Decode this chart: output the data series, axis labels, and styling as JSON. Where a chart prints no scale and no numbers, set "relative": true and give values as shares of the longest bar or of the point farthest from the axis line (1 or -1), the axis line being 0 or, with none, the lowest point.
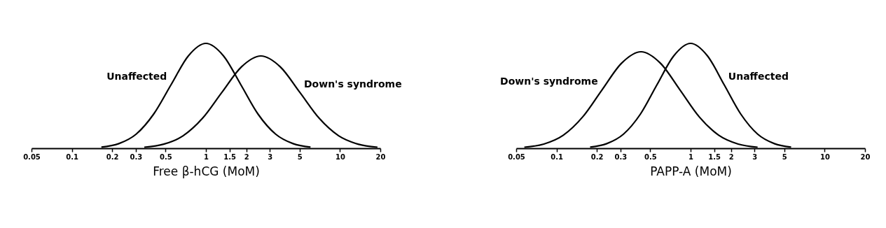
{
  "chart_data": [
    {
      "type": "line",
      "relative": true,
      "xlabel": "Free β-hCG (MoM)",
      "log": "x",
      "xlim": [
        0.05,
        20
      ],
      "xticks": [
        0.05,
        0.1,
        0.2,
        0.3,
        0.5,
        1,
        1.5,
        2,
        3,
        5,
        10,
        20
      ],
      "grid": false,
      "marker": "none",
      "line_style": "solid",
      "series": [
        {
          "name": "Unaffected",
          "color": "#000000",
          "x": [
            0.166,
            0.224,
            0.302,
            0.407,
            0.55,
            0.741,
            1,
            1.35,
            1.82,
            2.45,
            3.31,
            4.47,
            6.03
          ],
          "values": [
            0.011,
            0.044,
            0.135,
            0.325,
            0.607,
            0.882,
            1,
            0.882,
            0.607,
            0.325,
            0.135,
            0.044,
            0.011
          ]
        },
        {
          "name": "Down's syndrome",
          "color": "#000000",
          "x": [
            0.347,
            0.484,
            0.676,
            0.944,
            1.318,
            1.841,
            2.57,
            3.589,
            5.012,
            6.998,
            9.772,
            13.65,
            19.05
          ],
          "values": [
            0.01,
            0.039,
            0.119,
            0.286,
            0.534,
            0.776,
            0.88,
            0.776,
            0.534,
            0.286,
            0.119,
            0.039,
            0.01
          ]
        }
      ]
    },
    {
      "type": "line",
      "relative": true,
      "xlabel": "PAPP-A (MoM)",
      "log": "x",
      "xlim": [
        0.05,
        20
      ],
      "xticks": [
        0.05,
        0.1,
        0.2,
        0.3,
        0.5,
        1,
        1.5,
        2,
        3,
        5,
        10,
        20
      ],
      "grid": false,
      "marker": "none",
      "line_style": "solid",
      "series": [
        {
          "name": "Down's syndrome",
          "color": "#000000",
          "x": [
            0.0575,
            0.0804,
            0.1122,
            0.1567,
            0.2188,
            0.3055,
            0.4266,
            0.5957,
            0.8318,
            1.161,
            1.622,
            2.265,
            3.162
          ],
          "values": [
            0.01,
            0.04,
            0.124,
            0.299,
            0.558,
            0.811,
            0.92,
            0.811,
            0.558,
            0.299,
            0.124,
            0.04,
            0.01
          ]
        },
        {
          "name": "Unaffected",
          "color": "#000000",
          "x": [
            0.178,
            0.237,
            0.316,
            0.422,
            0.562,
            0.75,
            1,
            1.334,
            1.778,
            2.371,
            3.162,
            4.217,
            5.623
          ],
          "values": [
            0.011,
            0.044,
            0.135,
            0.325,
            0.607,
            0.882,
            1,
            0.882,
            0.607,
            0.325,
            0.135,
            0.044,
            0.011
          ]
        }
      ]
    }
  ]
}
